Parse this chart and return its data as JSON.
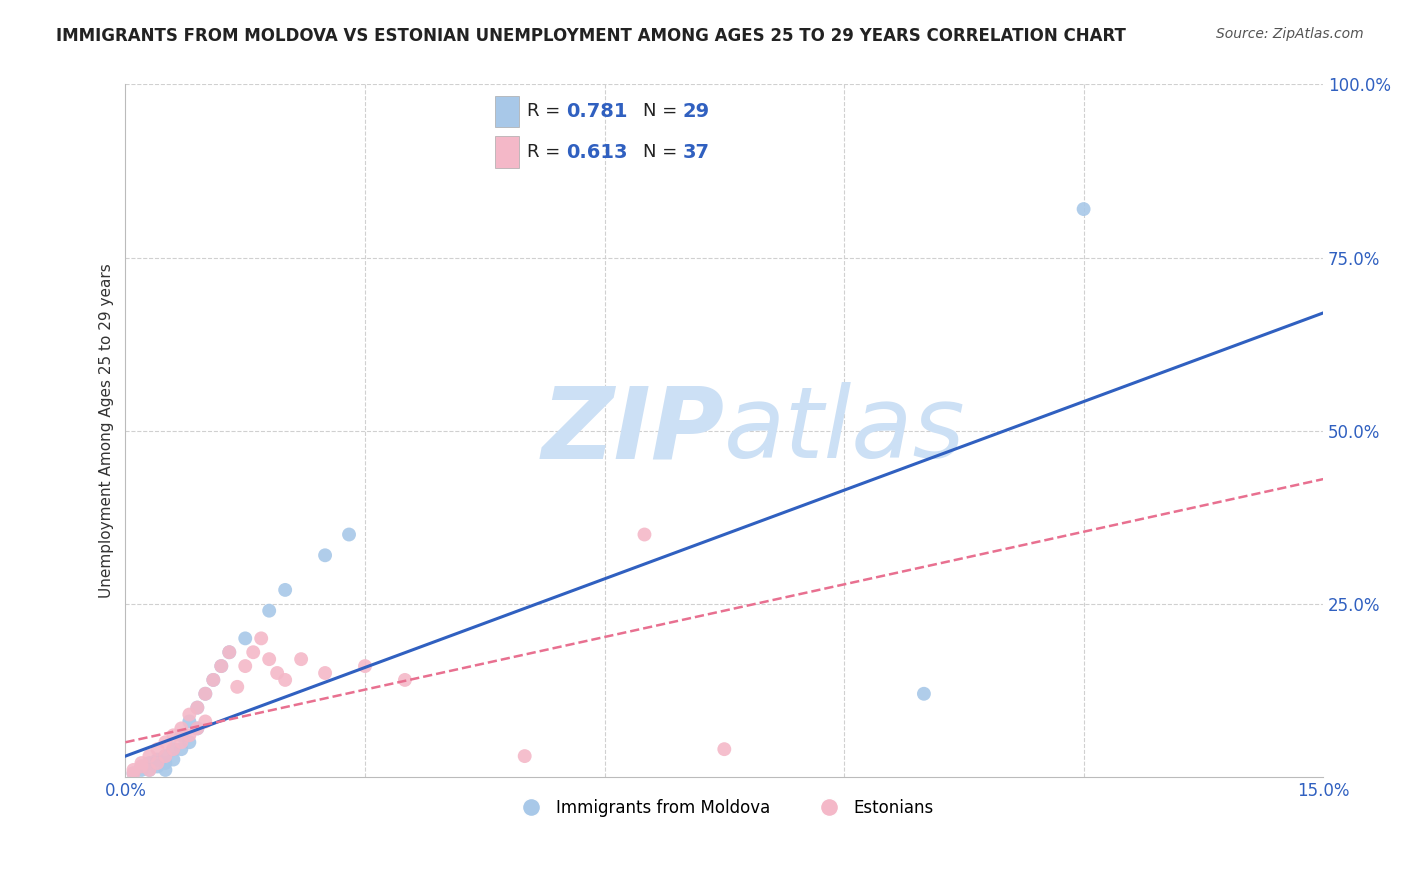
{
  "title": "IMMIGRANTS FROM MOLDOVA VS ESTONIAN UNEMPLOYMENT AMONG AGES 25 TO 29 YEARS CORRELATION CHART",
  "source": "Source: ZipAtlas.com",
  "ylabel": "Unemployment Among Ages 25 to 29 years",
  "xlim": [
    0.0,
    0.15
  ],
  "ylim": [
    0.0,
    1.0
  ],
  "xtick_positions": [
    0.0,
    0.03,
    0.06,
    0.09,
    0.12,
    0.15
  ],
  "xticklabels": [
    "0.0%",
    "",
    "",
    "",
    "",
    "15.0%"
  ],
  "ytick_positions": [
    0.0,
    0.25,
    0.5,
    0.75,
    1.0
  ],
  "ytick_labels": [
    "",
    "25.0%",
    "50.0%",
    "75.0%",
    "100.0%"
  ],
  "blue_scatter_x": [
    0.001,
    0.002,
    0.002,
    0.003,
    0.003,
    0.004,
    0.004,
    0.005,
    0.005,
    0.006,
    0.006,
    0.007,
    0.007,
    0.008,
    0.008,
    0.009,
    0.009,
    0.01,
    0.011,
    0.012,
    0.013,
    0.015,
    0.018,
    0.02,
    0.025,
    0.028,
    0.1,
    0.12,
    0.005
  ],
  "blue_scatter_y": [
    0.005,
    0.01,
    0.015,
    0.01,
    0.02,
    0.015,
    0.025,
    0.02,
    0.03,
    0.025,
    0.04,
    0.04,
    0.06,
    0.05,
    0.08,
    0.07,
    0.1,
    0.12,
    0.14,
    0.16,
    0.18,
    0.2,
    0.24,
    0.27,
    0.32,
    0.35,
    0.12,
    0.82,
    0.01
  ],
  "pink_scatter_x": [
    0.001,
    0.001,
    0.002,
    0.002,
    0.003,
    0.003,
    0.004,
    0.004,
    0.005,
    0.005,
    0.006,
    0.006,
    0.007,
    0.007,
    0.008,
    0.008,
    0.009,
    0.009,
    0.01,
    0.01,
    0.011,
    0.012,
    0.013,
    0.014,
    0.015,
    0.016,
    0.017,
    0.018,
    0.019,
    0.02,
    0.022,
    0.025,
    0.03,
    0.035,
    0.065,
    0.05,
    0.075
  ],
  "pink_scatter_y": [
    0.005,
    0.01,
    0.015,
    0.02,
    0.01,
    0.03,
    0.02,
    0.04,
    0.03,
    0.05,
    0.04,
    0.06,
    0.05,
    0.07,
    0.06,
    0.09,
    0.07,
    0.1,
    0.08,
    0.12,
    0.14,
    0.16,
    0.18,
    0.13,
    0.16,
    0.18,
    0.2,
    0.17,
    0.15,
    0.14,
    0.17,
    0.15,
    0.16,
    0.14,
    0.35,
    0.03,
    0.04
  ],
  "blue_line_x": [
    0.0,
    0.15
  ],
  "blue_line_y": [
    0.03,
    0.67
  ],
  "pink_line_x": [
    0.0,
    0.15
  ],
  "pink_line_y": [
    0.05,
    0.43
  ],
  "blue_color": "#a8c8e8",
  "pink_color": "#f4b8c8",
  "blue_line_color": "#3060c0",
  "pink_line_color": "#e87090",
  "pink_line_style": "--",
  "watermark_zip": "ZIP",
  "watermark_atlas": "atlas",
  "watermark_color": "#cce0f5",
  "legend_label1": "Immigrants from Moldova",
  "legend_label2": "Estonians",
  "background_color": "#ffffff",
  "grid_color": "#d0d0d0",
  "title_fontsize": 12,
  "axis_label_fontsize": 11,
  "tick_fontsize": 12,
  "source_fontsize": 10
}
